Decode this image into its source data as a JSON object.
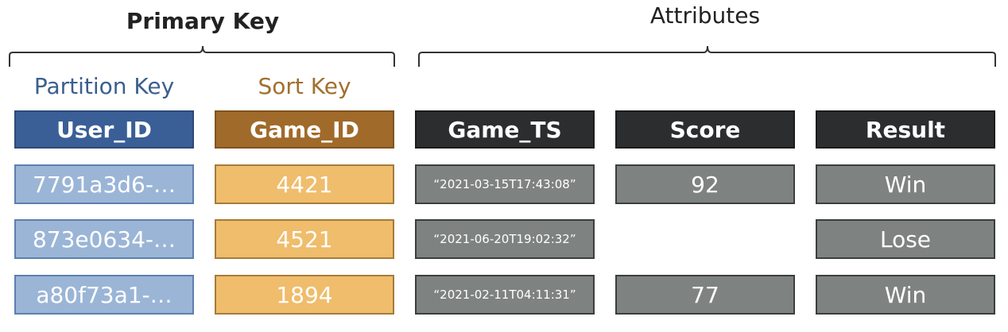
{
  "groups": {
    "primary_key": {
      "title": "Primary Key",
      "partition_label": "Partition Key",
      "sort_label": "Sort Key"
    },
    "attributes": {
      "title": "Attributes"
    }
  },
  "colors": {
    "partition_header": "#3a5f96",
    "partition_cell": "#9bb5d6",
    "partition_label": "#3b5f8e",
    "sort_header": "#a06a2a",
    "sort_cell": "#efbd6b",
    "sort_label": "#a0702d",
    "attr_header": "#2b2d2f",
    "attr_cell": "#7e8382"
  },
  "columns": [
    "User_ID",
    "Game_ID",
    "Game_TS",
    "Score",
    "Result"
  ],
  "rows": [
    {
      "user_id": "7791a3d6-…",
      "game_id": "4421",
      "game_ts": "“2021-03-15T17:43:08”",
      "score": "92",
      "result": "Win"
    },
    {
      "user_id": "873e0634-…",
      "game_id": "4521",
      "game_ts": "“2021-06-20T19:02:32”",
      "score": "",
      "result": "Lose"
    },
    {
      "user_id": "a80f73a1-…",
      "game_id": "1894",
      "game_ts": "“2021-02-11T04:11:31”",
      "score": "77",
      "result": "Win"
    }
  ]
}
